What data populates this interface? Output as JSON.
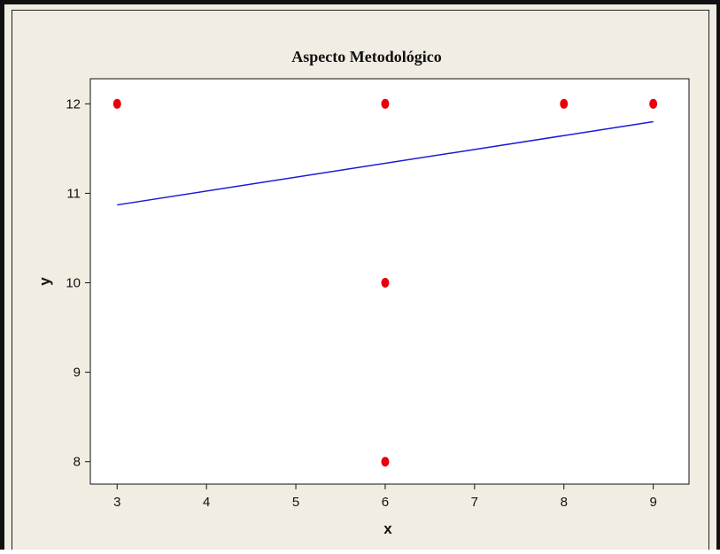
{
  "chart_data": {
    "type": "scatter",
    "title": "Aspecto Metodológico",
    "xlabel": "x",
    "ylabel": "y",
    "xlim": [
      2.7,
      9.4
    ],
    "ylim": [
      7.75,
      12.28
    ],
    "xticks": [
      3,
      4,
      5,
      6,
      7,
      8,
      9
    ],
    "yticks": [
      8,
      9,
      10,
      11,
      12
    ],
    "grid": false,
    "points": [
      {
        "x": 3,
        "y": 12
      },
      {
        "x": 6,
        "y": 12
      },
      {
        "x": 6,
        "y": 10
      },
      {
        "x": 6,
        "y": 8
      },
      {
        "x": 8,
        "y": 12
      },
      {
        "x": 9,
        "y": 12
      }
    ],
    "fit_line": {
      "x": [
        3,
        9
      ],
      "y": [
        10.87,
        11.8
      ]
    },
    "colors": {
      "points": "#e8000b",
      "fit_line": "#1a1ad6",
      "background": "#f1ede3",
      "plot_area": "#ffffff"
    }
  }
}
